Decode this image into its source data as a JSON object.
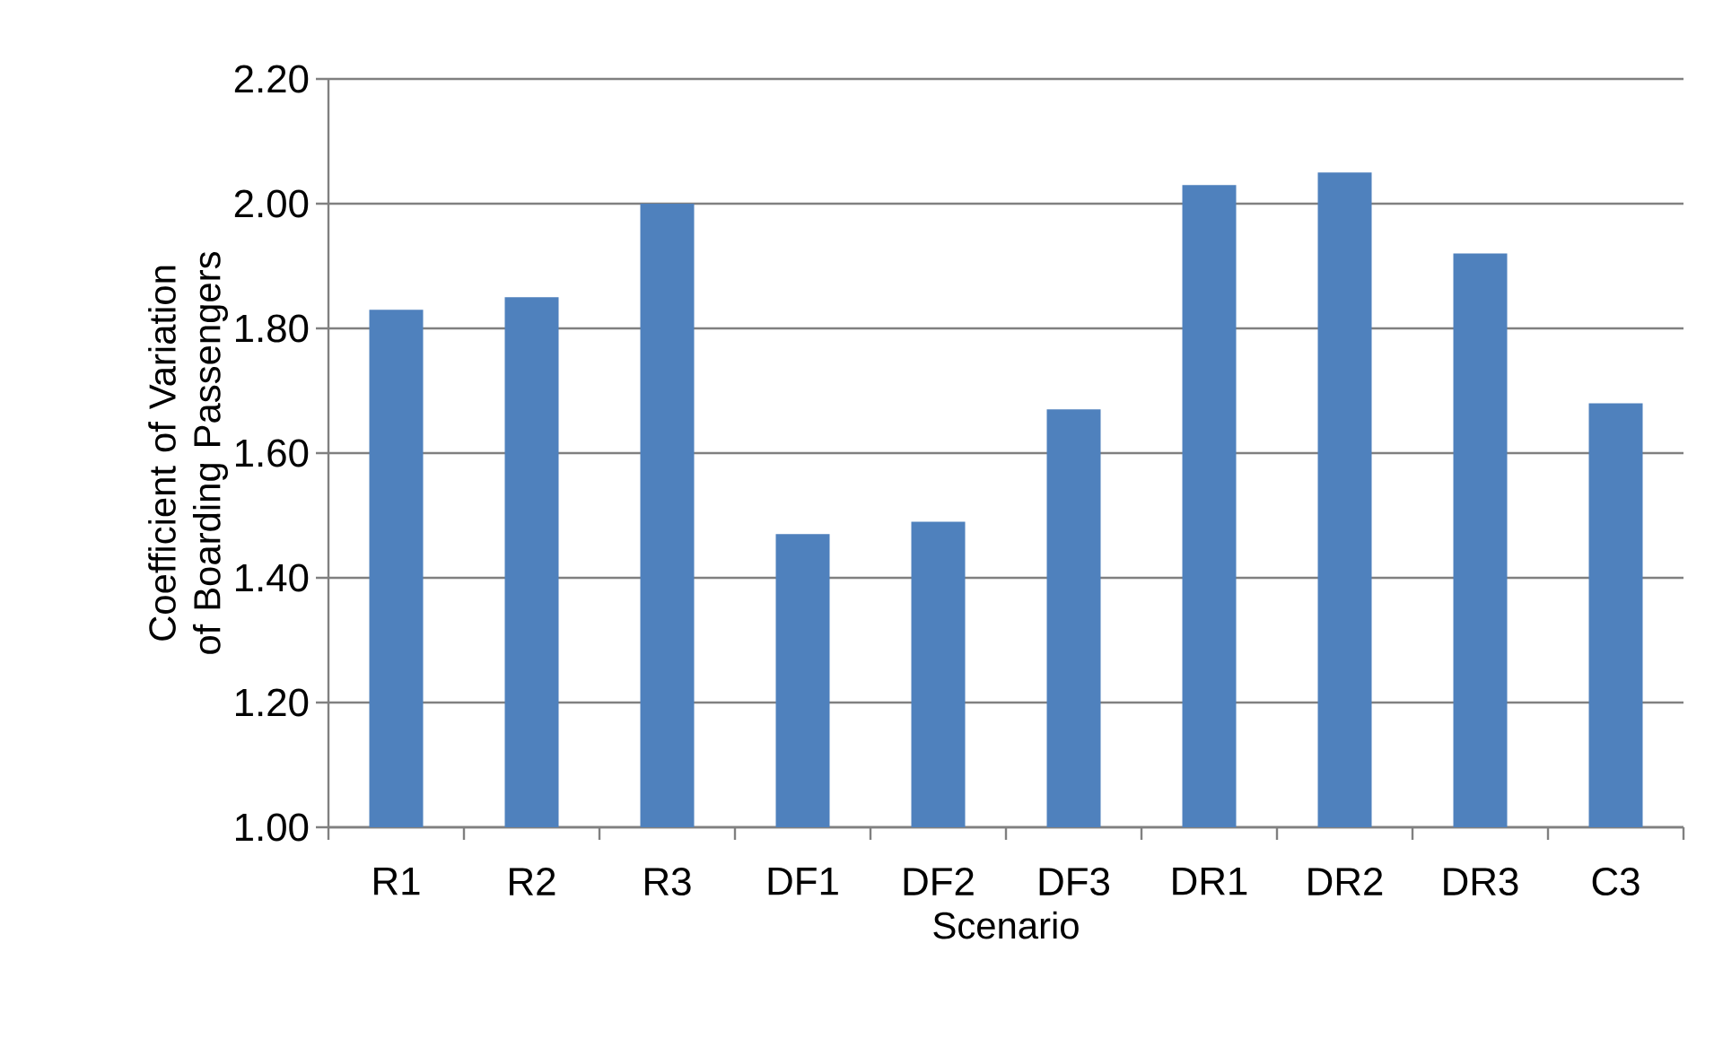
{
  "chart_data": {
    "type": "bar",
    "xlabel": "Scenario",
    "ylabel": "Coefficient of Variation of Boarding Passengers",
    "categories": [
      "R1",
      "R2",
      "R3",
      "DF1",
      "DF2",
      "DF3",
      "DR1",
      "DR2",
      "DR3",
      "C3"
    ],
    "values": [
      1.83,
      1.85,
      2.0,
      1.47,
      1.49,
      1.67,
      2.03,
      2.05,
      1.92,
      1.68
    ],
    "color": "#4f81bd",
    "ylim": [
      1.0,
      2.2
    ],
    "yticks": [
      {
        "value": 1.0,
        "label": "1.00"
      },
      {
        "value": 1.2,
        "label": "1.20"
      },
      {
        "value": 1.4,
        "label": "1.40"
      },
      {
        "value": 1.6,
        "label": "1.60"
      },
      {
        "value": 1.8,
        "label": "1.80"
      },
      {
        "value": 2.0,
        "label": "2.00"
      },
      {
        "value": 2.2,
        "label": "2.20"
      }
    ],
    "grid": "y"
  }
}
